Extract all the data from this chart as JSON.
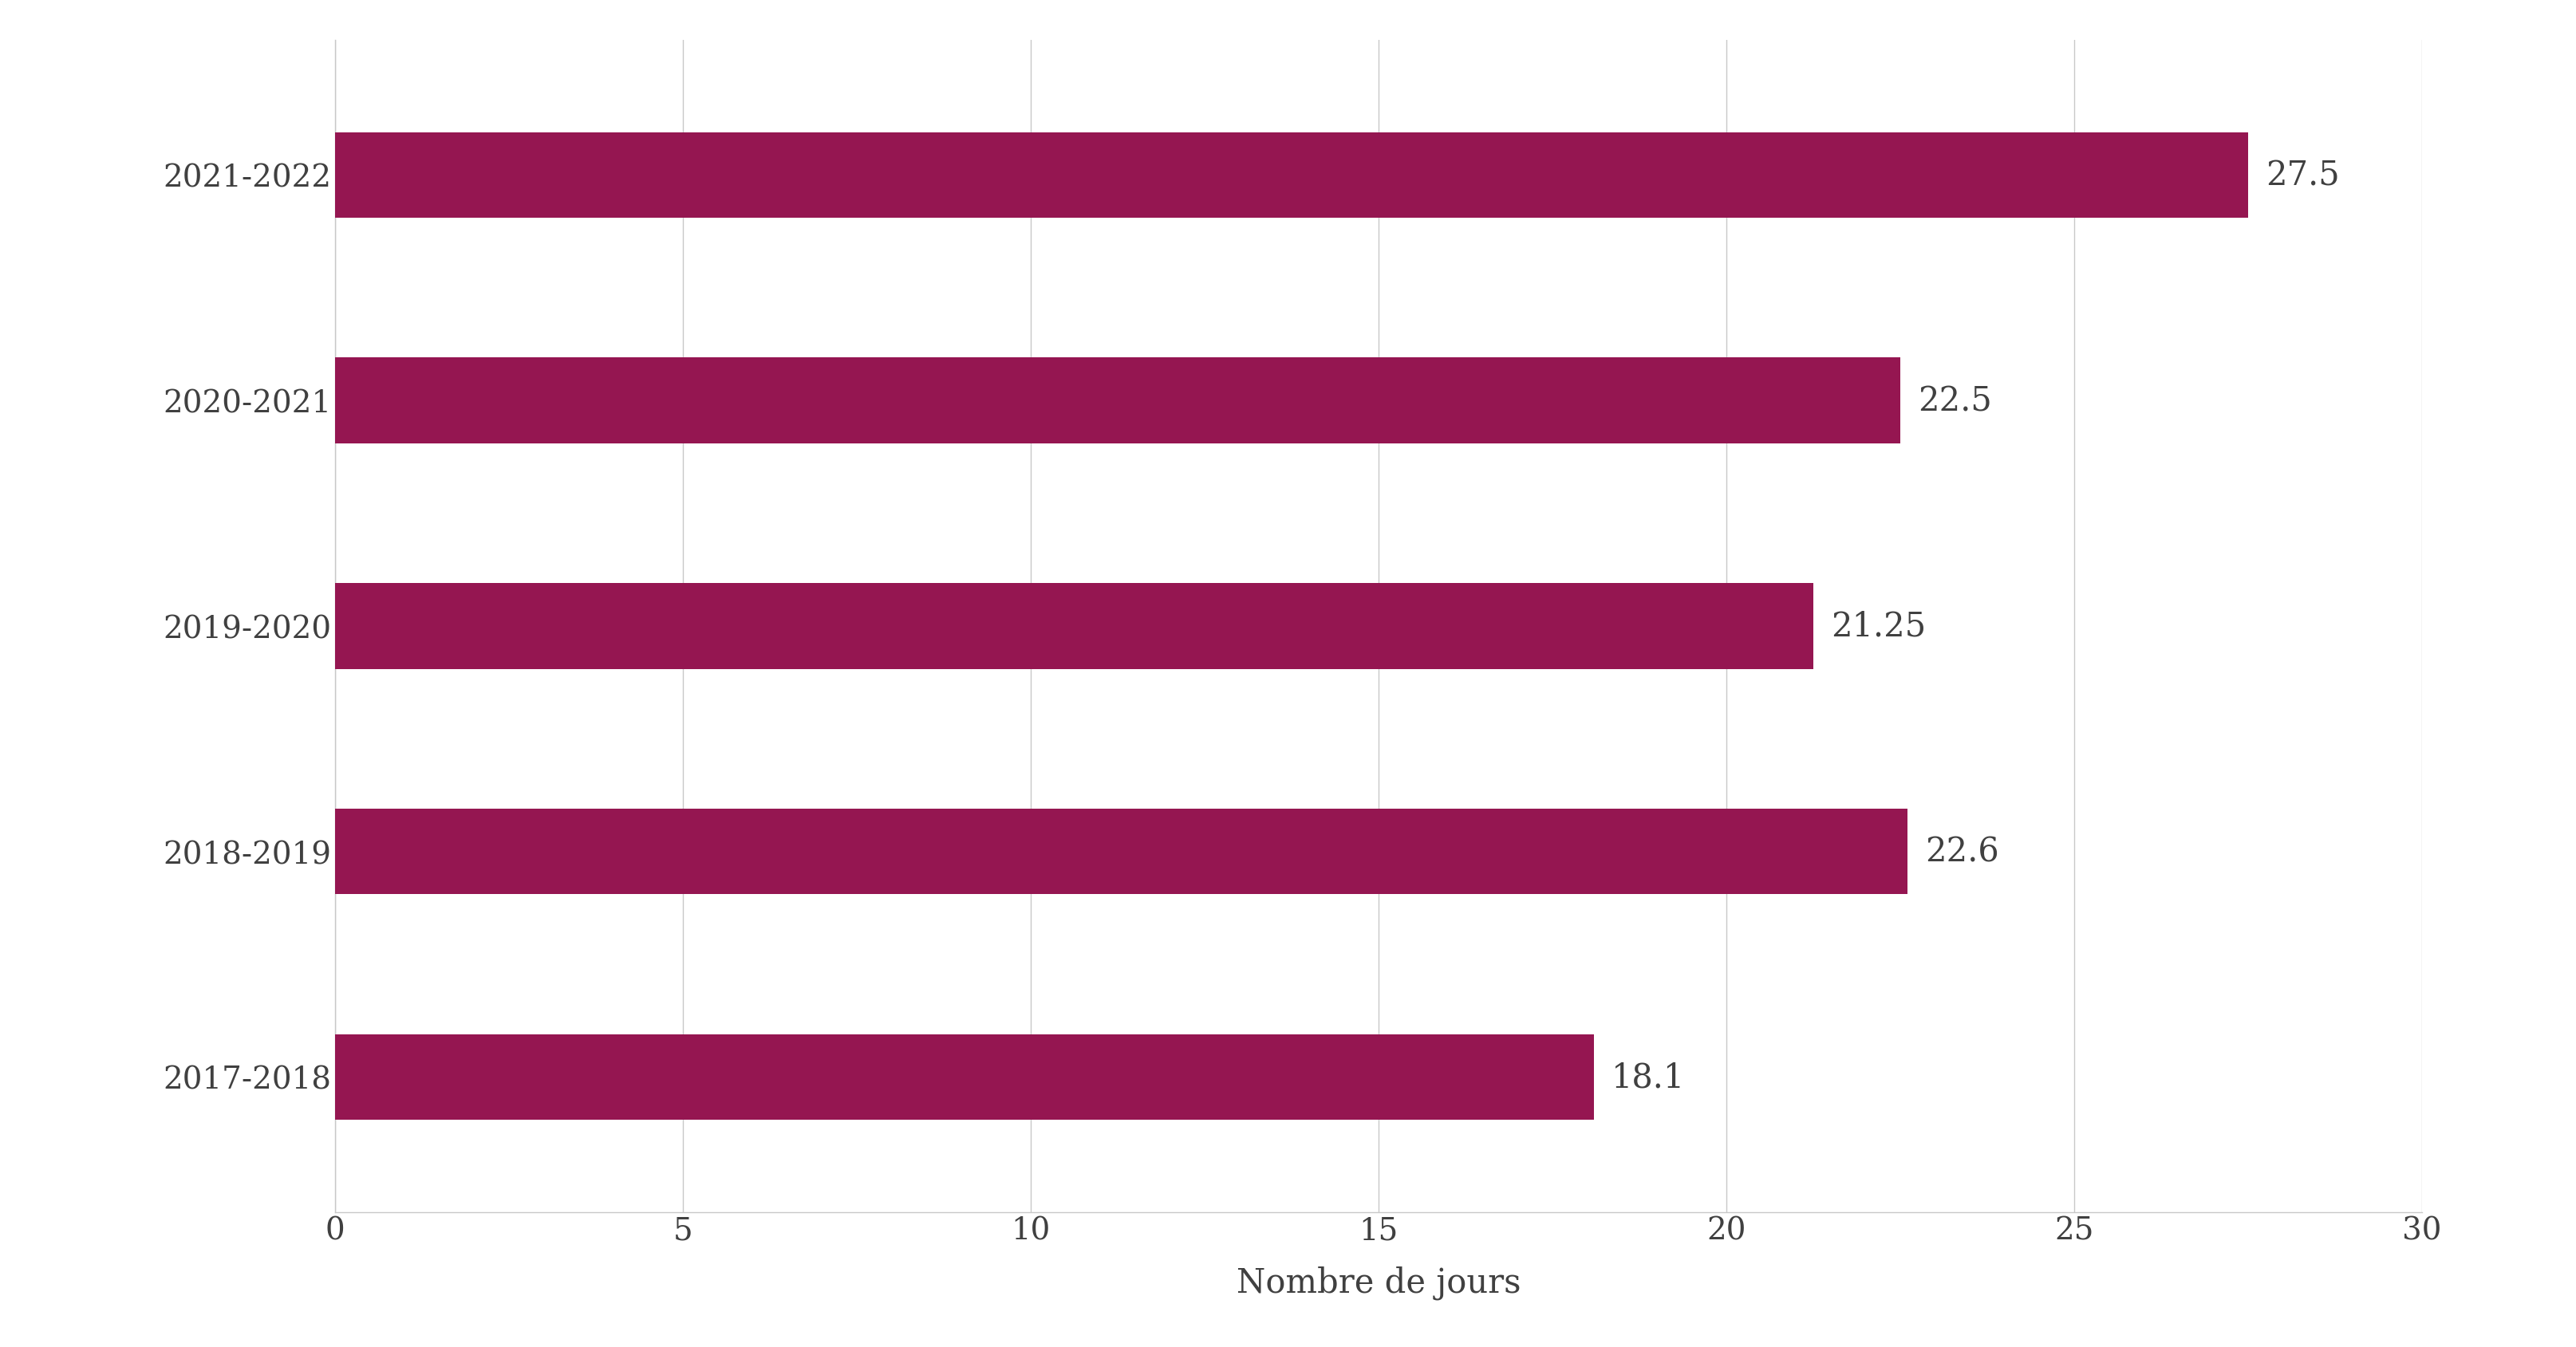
{
  "categories": [
    "2017-2018",
    "2018-2019",
    "2019-2020",
    "2020-2021",
    "2021-2022"
  ],
  "values": [
    18.1,
    22.6,
    21.25,
    22.5,
    27.5
  ],
  "bar_color": "#951651",
  "bar_labels": [
    "18.1",
    "22.6",
    "21.25",
    "22.5",
    "27.5"
  ],
  "xlabel": "Nombre de jours",
  "xlim": [
    0,
    30
  ],
  "xticks": [
    0,
    5,
    10,
    15,
    20,
    25,
    30
  ],
  "grid_color": "#c8c8c8",
  "background_color": "#ffffff",
  "label_fontsize": 30,
  "tick_fontsize": 28,
  "bar_height": 0.38,
  "label_padding": 0.25
}
